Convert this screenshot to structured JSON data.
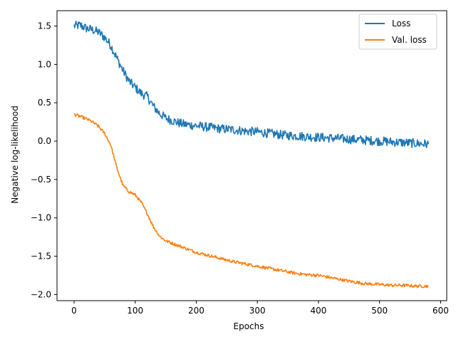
{
  "chart_data": {
    "type": "line",
    "xlabel": "Epochs",
    "ylabel": "Negative log-likelihood",
    "xlim": [
      -28,
      610
    ],
    "ylim": [
      -2.08,
      1.7
    ],
    "xticks": [
      0,
      100,
      200,
      300,
      400,
      500,
      600
    ],
    "xtick_labels": [
      "0",
      "100",
      "200",
      "300",
      "400",
      "500",
      "600"
    ],
    "yticks": [
      -2.0,
      -1.5,
      -1.0,
      -0.5,
      0.0,
      0.5,
      1.0,
      1.5
    ],
    "ytick_labels": [
      "−2.0",
      "−1.5",
      "−1.0",
      "−0.5",
      "0.0",
      "0.5",
      "1.0",
      "1.5"
    ],
    "grid": false,
    "legend_position": "top-right",
    "series": [
      {
        "name": "Loss",
        "color": "#1f77b4",
        "x": [
          0,
          10,
          20,
          30,
          40,
          50,
          60,
          70,
          80,
          90,
          100,
          110,
          120,
          130,
          140,
          150,
          160,
          170,
          180,
          190,
          200,
          220,
          240,
          260,
          280,
          300,
          320,
          340,
          360,
          380,
          400,
          420,
          440,
          460,
          480,
          500,
          520,
          540,
          560,
          580
        ],
        "values": [
          1.5,
          1.51,
          1.47,
          1.45,
          1.42,
          1.35,
          1.25,
          1.08,
          0.92,
          0.78,
          0.7,
          0.62,
          0.58,
          0.45,
          0.36,
          0.3,
          0.27,
          0.24,
          0.22,
          0.21,
          0.2,
          0.18,
          0.16,
          0.15,
          0.13,
          0.12,
          0.1,
          0.08,
          0.07,
          0.06,
          0.05,
          0.04,
          0.03,
          0.02,
          0.01,
          0.0,
          -0.01,
          -0.02,
          -0.03,
          -0.04
        ],
        "noise": 0.06
      },
      {
        "name": "Val. loss",
        "color": "#ff7f0e",
        "x": [
          0,
          10,
          20,
          30,
          40,
          50,
          60,
          70,
          80,
          90,
          100,
          110,
          120,
          130,
          140,
          150,
          160,
          170,
          180,
          190,
          200,
          220,
          240,
          260,
          280,
          300,
          320,
          340,
          360,
          380,
          400,
          420,
          440,
          460,
          480,
          500,
          520,
          540,
          560,
          580
        ],
        "values": [
          0.35,
          0.32,
          0.29,
          0.25,
          0.19,
          0.1,
          -0.05,
          -0.35,
          -0.58,
          -0.66,
          -0.7,
          -0.8,
          -0.95,
          -1.12,
          -1.24,
          -1.3,
          -1.33,
          -1.36,
          -1.39,
          -1.42,
          -1.45,
          -1.49,
          -1.53,
          -1.57,
          -1.6,
          -1.63,
          -1.66,
          -1.69,
          -1.72,
          -1.74,
          -1.75,
          -1.78,
          -1.81,
          -1.84,
          -1.86,
          -1.87,
          -1.88,
          -1.88,
          -1.89,
          -1.89
        ],
        "noise": 0.02
      }
    ]
  }
}
